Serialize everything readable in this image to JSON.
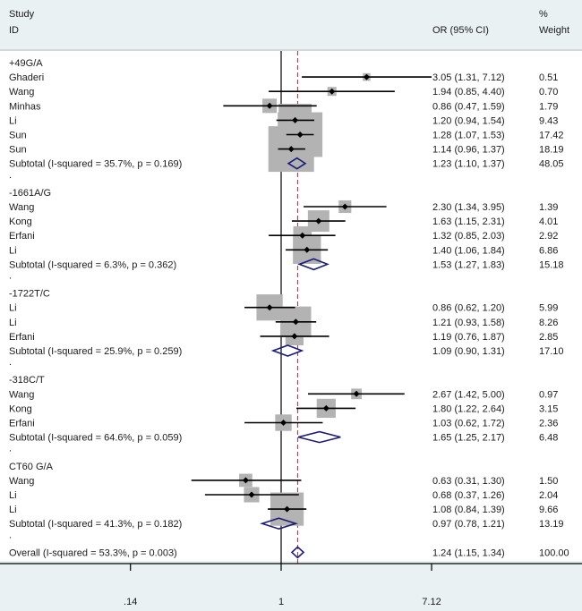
{
  "chart_data": {
    "type": "forest",
    "scale": "log",
    "headers": {
      "study": "Study",
      "id": "ID",
      "estimate": "OR (95% CI)",
      "weight_pct": "%",
      "weight": "Weight"
    },
    "null_value": 1,
    "x_ticks": [
      {
        "value": 0.14,
        "label": ".14"
      },
      {
        "value": 1,
        "label": "1"
      },
      {
        "value": 7.12,
        "label": "7.12"
      }
    ],
    "groups": [
      {
        "name": "+49G/A",
        "studies": [
          {
            "id": "Ghaderi",
            "or": 3.05,
            "lo": 1.31,
            "hi": 7.12,
            "text": "3.05 (1.31, 7.12)",
            "weight": 0.51,
            "weight_text": "0.51"
          },
          {
            "id": "Wang",
            "or": 1.94,
            "lo": 0.85,
            "hi": 4.4,
            "text": "1.94 (0.85, 4.40)",
            "weight": 0.7,
            "weight_text": "0.70"
          },
          {
            "id": "Minhas",
            "or": 0.86,
            "lo": 0.47,
            "hi": 1.59,
            "text": "0.86 (0.47, 1.59)",
            "weight": 1.79,
            "weight_text": "1.79"
          },
          {
            "id": "Li",
            "or": 1.2,
            "lo": 0.94,
            "hi": 1.54,
            "text": "1.20 (0.94, 1.54)",
            "weight": 9.43,
            "weight_text": "9.43"
          },
          {
            "id": "Sun",
            "or": 1.28,
            "lo": 1.07,
            "hi": 1.53,
            "text": "1.28 (1.07, 1.53)",
            "weight": 17.42,
            "weight_text": "17.42"
          },
          {
            "id": "Sun",
            "or": 1.14,
            "lo": 0.96,
            "hi": 1.37,
            "text": "1.14 (0.96, 1.37)",
            "weight": 18.19,
            "weight_text": "18.19"
          }
        ],
        "subtotal": {
          "label": "Subtotal",
          "stats": "(I-squared = 35.7%, p = 0.169)",
          "or": 1.23,
          "lo": 1.1,
          "hi": 1.37,
          "text": "1.23 (1.10, 1.37)",
          "weight_text": "48.05"
        }
      },
      {
        "name": "-1661A/G",
        "studies": [
          {
            "id": "Wang",
            "or": 2.3,
            "lo": 1.34,
            "hi": 3.95,
            "text": "2.30 (1.34, 3.95)",
            "weight": 1.39,
            "weight_text": "1.39"
          },
          {
            "id": "Kong",
            "or": 1.63,
            "lo": 1.15,
            "hi": 2.31,
            "text": "1.63 (1.15, 2.31)",
            "weight": 4.01,
            "weight_text": "4.01"
          },
          {
            "id": "Erfani",
            "or": 1.32,
            "lo": 0.85,
            "hi": 2.03,
            "text": "1.32 (0.85, 2.03)",
            "weight": 2.92,
            "weight_text": "2.92"
          },
          {
            "id": "Li",
            "or": 1.4,
            "lo": 1.06,
            "hi": 1.84,
            "text": "1.40 (1.06, 1.84)",
            "weight": 6.86,
            "weight_text": "6.86"
          }
        ],
        "subtotal": {
          "label": "Subtotal",
          "stats": "(I-squared = 6.3%, p = 0.362)",
          "or": 1.53,
          "lo": 1.27,
          "hi": 1.83,
          "text": "1.53 (1.27, 1.83)",
          "weight_text": "15.18"
        }
      },
      {
        "name": "-1722T/C",
        "studies": [
          {
            "id": "Li",
            "or": 0.86,
            "lo": 0.62,
            "hi": 1.2,
            "text": "0.86 (0.62, 1.20)",
            "weight": 5.99,
            "weight_text": "5.99"
          },
          {
            "id": "Li",
            "or": 1.21,
            "lo": 0.93,
            "hi": 1.58,
            "text": "1.21 (0.93, 1.58)",
            "weight": 8.26,
            "weight_text": "8.26"
          },
          {
            "id": "Erfani",
            "or": 1.19,
            "lo": 0.76,
            "hi": 1.87,
            "text": "1.19 (0.76, 1.87)",
            "weight": 2.85,
            "weight_text": "2.85"
          }
        ],
        "subtotal": {
          "label": "Subtotal",
          "stats": "(I-squared = 25.9%, p = 0.259)",
          "or": 1.09,
          "lo": 0.9,
          "hi": 1.31,
          "text": "1.09 (0.90, 1.31)",
          "weight_text": "17.10"
        }
      },
      {
        "name": "-318C/T",
        "studies": [
          {
            "id": "Wang",
            "or": 2.67,
            "lo": 1.42,
            "hi": 5.0,
            "text": "2.67 (1.42, 5.00)",
            "weight": 0.97,
            "weight_text": "0.97"
          },
          {
            "id": "Kong",
            "or": 1.8,
            "lo": 1.22,
            "hi": 2.64,
            "text": "1.80 (1.22, 2.64)",
            "weight": 3.15,
            "weight_text": "3.15"
          },
          {
            "id": "Erfani",
            "or": 1.03,
            "lo": 0.62,
            "hi": 1.72,
            "text": "1.03 (0.62, 1.72)",
            "weight": 2.36,
            "weight_text": "2.36"
          }
        ],
        "subtotal": {
          "label": "Subtotal",
          "stats": "(I-squared = 64.6%, p = 0.059)",
          "or": 1.65,
          "lo": 1.25,
          "hi": 2.17,
          "text": "1.65 (1.25, 2.17)",
          "weight_text": "6.48"
        }
      },
      {
        "name": "CT60 G/A",
        "studies": [
          {
            "id": "Wang",
            "or": 0.63,
            "lo": 0.31,
            "hi": 1.3,
            "text": "0.63 (0.31, 1.30)",
            "weight": 1.5,
            "weight_text": "1.50"
          },
          {
            "id": "Li",
            "or": 0.68,
            "lo": 0.37,
            "hi": 1.26,
            "text": "0.68 (0.37, 1.26)",
            "weight": 2.04,
            "weight_text": "2.04"
          },
          {
            "id": "Li",
            "or": 1.08,
            "lo": 0.84,
            "hi": 1.39,
            "text": "1.08 (0.84, 1.39)",
            "weight": 9.66,
            "weight_text": "9.66"
          }
        ],
        "subtotal": {
          "label": "Subtotal",
          "stats": "(I-squared = 41.3%, p = 0.182)",
          "or": 0.97,
          "lo": 0.78,
          "hi": 1.21,
          "text": "0.97 (0.78, 1.21)",
          "weight_text": "13.19"
        }
      }
    ],
    "separator": ".",
    "overall": {
      "label": "Overall",
      "stats": "(I-squared = 53.3%, p = 0.003)",
      "or": 1.24,
      "lo": 1.15,
      "hi": 1.34,
      "text": "1.24 (1.15, 1.34)",
      "weight_text": "100.00"
    },
    "colors": {
      "square": "#b3b3b3",
      "diamond": "#1b1b7a",
      "ref_line": "#a0303a",
      "stats_accent": "#9a3a8a"
    }
  }
}
